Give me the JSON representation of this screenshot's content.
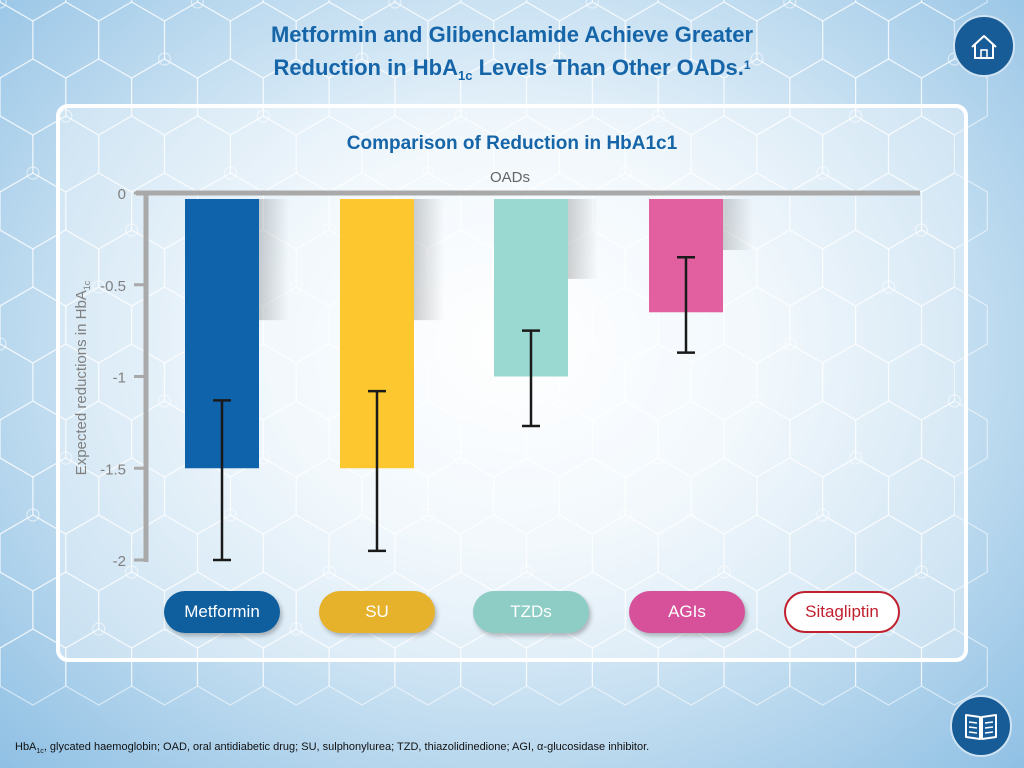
{
  "header": {
    "title_line1": "Metformin and Glibenclamide Achieve Greater",
    "title_line2_a": "Reduction in HbA",
    "title_line2_sub": "1c",
    "title_line2_b": " Levels Than Other OADs.",
    "title_sup": "1"
  },
  "nav": {
    "home_icon": "home-icon",
    "book_icon": "book-icon"
  },
  "chart_data": {
    "type": "bar",
    "title": "Comparison of Reduction in HbA1c1",
    "xlabel": "OADs",
    "ylabel": "Expected reductions in HbA",
    "ylabel_sub": "1c",
    "ylim": [
      -2,
      0
    ],
    "yticks": [
      0,
      -0.5,
      -1,
      -1.5,
      -2
    ],
    "ytick_labels": [
      "0",
      "-0.5",
      "-1",
      "-1.5",
      "-2"
    ],
    "categories": [
      "Metformin",
      "SU",
      "TZDs",
      "AGIs",
      "Sitagliptin"
    ],
    "values": [
      -1.5,
      -1.5,
      -1.0,
      -0.65,
      null
    ],
    "error_low": [
      -2.0,
      -1.95,
      -1.27,
      -0.87,
      null
    ],
    "error_high": [
      -1.13,
      -1.08,
      -0.75,
      -0.35,
      null
    ],
    "colors": [
      "#0e63ab",
      "#fdc82f",
      "#9ad8d2",
      "#e2609f",
      "#c8202e"
    ],
    "grid": false
  },
  "legend": [
    {
      "label": "Metformin",
      "bg": "#0f5f9f",
      "text": "#ffffff",
      "outline": false
    },
    {
      "label": "SU",
      "bg": "#e6b22c",
      "text": "#ffffff",
      "outline": false
    },
    {
      "label": "TZDs",
      "bg": "#8ecdc6",
      "text": "#ffffff",
      "outline": false
    },
    {
      "label": "AGIs",
      "bg": "#d6509a",
      "text": "#ffffff",
      "outline": false
    },
    {
      "label": "Sitagliptin",
      "bg": "#ffffff",
      "text": "#c0202e",
      "outline": true
    }
  ],
  "footnote": {
    "a": "HbA",
    "sub": "1c",
    "b": ", glycated haemoglobin; OAD, oral antidiabetic drug; SU, sulphonylurea; TZD, thiazolidinedione; AGI, α-glucosidase inhibitor."
  }
}
